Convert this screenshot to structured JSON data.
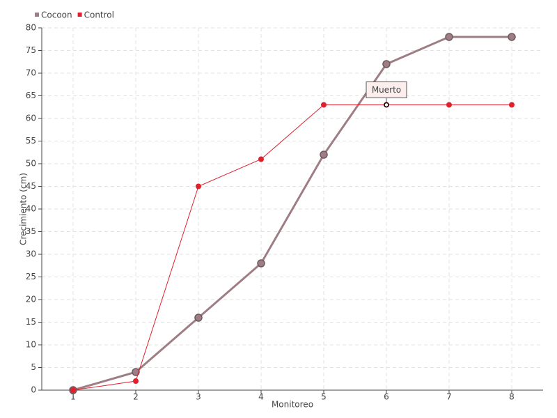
{
  "chart_data": {
    "type": "line",
    "x_label": "Monitoreo",
    "y_label": "Crecimiento (cm)",
    "x": [
      1,
      2,
      3,
      4,
      5,
      6,
      7,
      8
    ],
    "series": [
      {
        "name": "Cocoon",
        "color": "#9e7e84",
        "values": [
          0,
          4,
          16,
          28,
          52,
          72,
          78,
          78
        ]
      },
      {
        "name": "Control",
        "color": "#e0202c",
        "values": [
          0,
          2,
          45,
          51,
          63,
          63,
          63,
          63
        ]
      }
    ],
    "xlim": [
      0.5,
      8.5
    ],
    "xticks": [
      1,
      2,
      3,
      4,
      5,
      6,
      7,
      8
    ],
    "ylim": [
      0,
      80
    ],
    "yticks": [
      0,
      5,
      10,
      15,
      20,
      25,
      30,
      35,
      40,
      45,
      50,
      55,
      60,
      65,
      70,
      75,
      80
    ],
    "grid": true,
    "legend": "top-left",
    "annotations": [
      {
        "text": "Muerto",
        "x": 6,
        "y": 63
      }
    ]
  }
}
